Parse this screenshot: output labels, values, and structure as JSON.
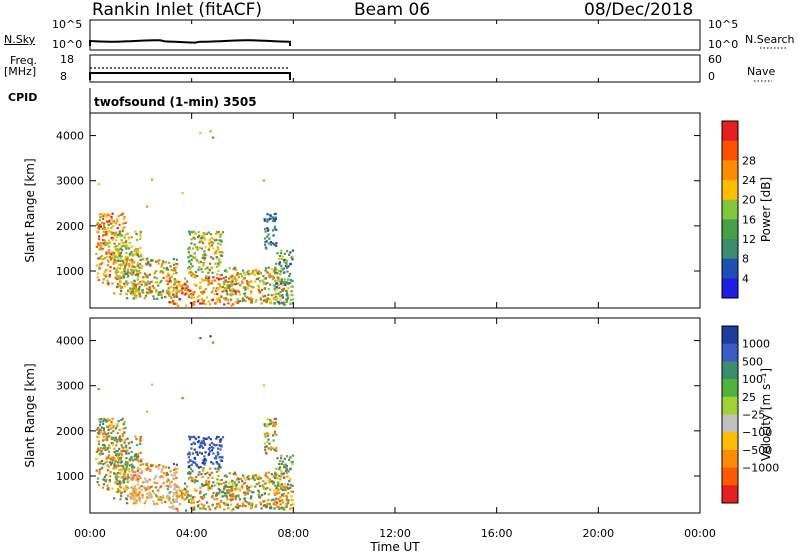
{
  "header": {
    "station": "Rankin Inlet (fitACF)",
    "beam": "Beam 06",
    "date": "08/Dec/2018"
  },
  "top_panels": {
    "nsky_label": "N.Sky",
    "nsky_ticks": [
      "10^5",
      "10^0"
    ],
    "nsearch_ticks": [
      "10^5",
      "10^0"
    ],
    "nsearch_label": "N.Search",
    "freq_label_1": "Freq.",
    "freq_label_2": "[MHz]",
    "freq_ticks": [
      "18",
      "8"
    ],
    "nave_ticks": [
      "60",
      "0"
    ],
    "nave_label": "Nave",
    "cpid_label": "CPID",
    "cpid_text": "twofsound (1-min) 3505"
  },
  "colors": {
    "power_scale": [
      "#1e1ee6",
      "#1e50b4",
      "#3c8c6e",
      "#46a046",
      "#82c83c",
      "#ffbe00",
      "#ff8c00",
      "#ff5000",
      "#e61e1e"
    ],
    "velocity_scale": [
      "#1e3ca0",
      "#3c5ac8",
      "#3c8c6e",
      "#50b43c",
      "#a0d232",
      "#c0c0c0",
      "#ffbe00",
      "#ff8c00",
      "#ff5a00",
      "#e61e1e"
    ]
  },
  "chart_data": [
    {
      "type": "heatmap",
      "title": "Power",
      "ylabel": "Slant Range [km]",
      "yticks": [
        "1000",
        "2000",
        "3000",
        "4000"
      ],
      "ylim": [
        180,
        4500
      ],
      "xlim": [
        0,
        24
      ],
      "data_extent_hours": [
        0,
        8
      ],
      "colorbar_label": "Power [dB]",
      "colorbar_ticks": [
        "4",
        "8",
        "12",
        "16",
        "20",
        "24",
        "28"
      ],
      "colorbar_range": [
        0,
        32
      ]
    },
    {
      "type": "heatmap",
      "title": "Velocity",
      "ylabel": "Slant Range [km]",
      "yticks": [
        "1000",
        "2000",
        "3000",
        "4000"
      ],
      "ylim": [
        180,
        4500
      ],
      "xlim": [
        0,
        24
      ],
      "data_extent_hours": [
        0,
        8
      ],
      "colorbar_label": "Velocity [m s⁻¹]",
      "colorbar_ticks": [
        "1000",
        "500",
        "100",
        "25",
        "−25",
        "−100",
        "−500",
        "−1000"
      ]
    }
  ],
  "x_axis": {
    "ticks": [
      "00:00",
      "04:00",
      "08:00",
      "12:00",
      "16:00",
      "20:00",
      "00:00"
    ],
    "label": "Time UT"
  }
}
